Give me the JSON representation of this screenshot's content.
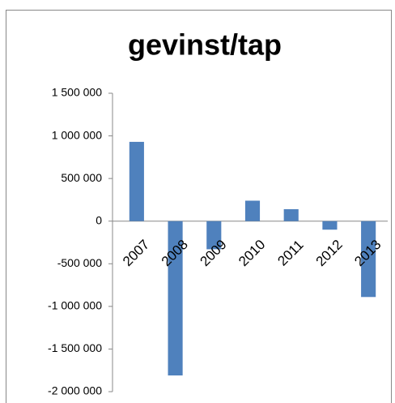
{
  "chart_data": {
    "type": "bar",
    "title": "gevinst/tap",
    "categories": [
      "2007",
      "2008",
      "2009",
      "2010",
      "2011",
      "2012",
      "2013"
    ],
    "values": [
      930000,
      -1810000,
      -330000,
      240000,
      140000,
      -100000,
      -890000
    ],
    "color": "#4f81bd",
    "ylim": [
      -2000000,
      1500000
    ],
    "yticks": [
      {
        "value": -2000000,
        "label": "-2 000 000"
      },
      {
        "value": -1500000,
        "label": "-1 500 000"
      },
      {
        "value": -1000000,
        "label": "-1 000 000"
      },
      {
        "value": -500000,
        "label": "-500 000"
      },
      0,
      {
        "value": 500000,
        "label": "500 000"
      },
      {
        "value": 1000000,
        "label": "1 000 000"
      },
      {
        "value": 1500000,
        "label": "1 500 000"
      }
    ],
    "grid": false
  }
}
